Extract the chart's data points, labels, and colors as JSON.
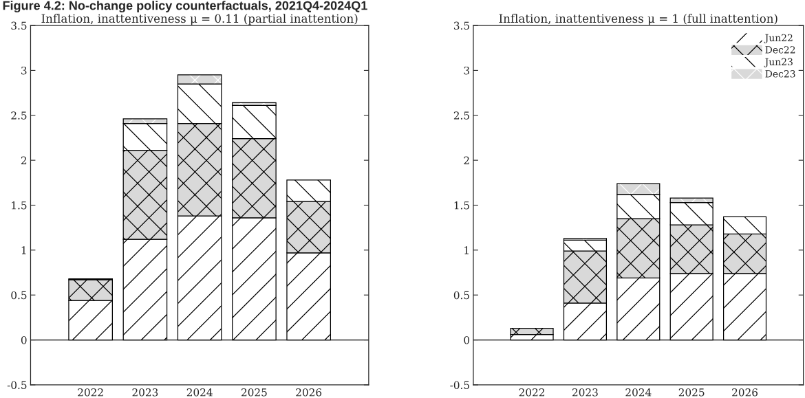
{
  "chart_data": [
    {
      "type": "bar",
      "stacked": true,
      "title": "Figure 4.2: No-change policy counterfactuals, 2021Q4-2024Q1",
      "subtitle": "Inflation, inattentiveness μ = 0.11 (partial inattention)",
      "categories": [
        "2022",
        "2023",
        "2024",
        "2025",
        "2026"
      ],
      "series": [
        {
          "color": "#ffffff",
          "values": [
            0.44,
            1.12,
            1.38,
            1.36,
            0.97
          ]
        },
        {
          "color": "#d9d9d9",
          "values": [
            0.23,
            0.99,
            1.03,
            0.88,
            0.57
          ]
        },
        {
          "color": "#ffffff",
          "values": [
            0.01,
            0.3,
            0.44,
            0.37,
            0.24
          ]
        },
        {
          "color": "#d9d9d9",
          "values": [
            0,
            0.05,
            0.1,
            0.03,
            0
          ]
        }
      ],
      "ylim": [
        -0.5,
        3.5
      ],
      "yticks": [
        -0.5,
        0,
        0.5,
        1,
        1.5,
        2,
        2.5,
        3,
        3.5
      ],
      "ref_lines": [
        {
          "axis": "y",
          "value": 0
        }
      ],
      "grid": false,
      "legend": false
    },
    {
      "type": "bar",
      "stacked": true,
      "title": "Inflation, inattentiveness μ = 1 (full inattention)",
      "categories": [
        "2022",
        "2023",
        "2024",
        "2025",
        "2026"
      ],
      "series": [
        {
          "name": "Jun22",
          "color": "#ffffff",
          "values": [
            0.06,
            0.41,
            0.69,
            0.74,
            0.74
          ]
        },
        {
          "name": "Dec22",
          "color": "#d9d9d9",
          "values": [
            0.07,
            0.58,
            0.66,
            0.54,
            0.44
          ]
        },
        {
          "name": "Jun23",
          "color": "#ffffff",
          "values": [
            0,
            0.12,
            0.27,
            0.25,
            0.19
          ]
        },
        {
          "name": "Dec23",
          "color": "#d9d9d9",
          "values": [
            0,
            0.02,
            0.12,
            0.05,
            0
          ]
        }
      ],
      "ylim": [
        -0.5,
        3.5
      ],
      "yticks": [
        -0.5,
        0,
        0.5,
        1,
        1.5,
        2,
        2.5,
        3,
        3.5
      ],
      "ref_lines": [
        {
          "axis": "y",
          "value": 0
        }
      ],
      "grid": false,
      "legend": "top right"
    }
  ]
}
